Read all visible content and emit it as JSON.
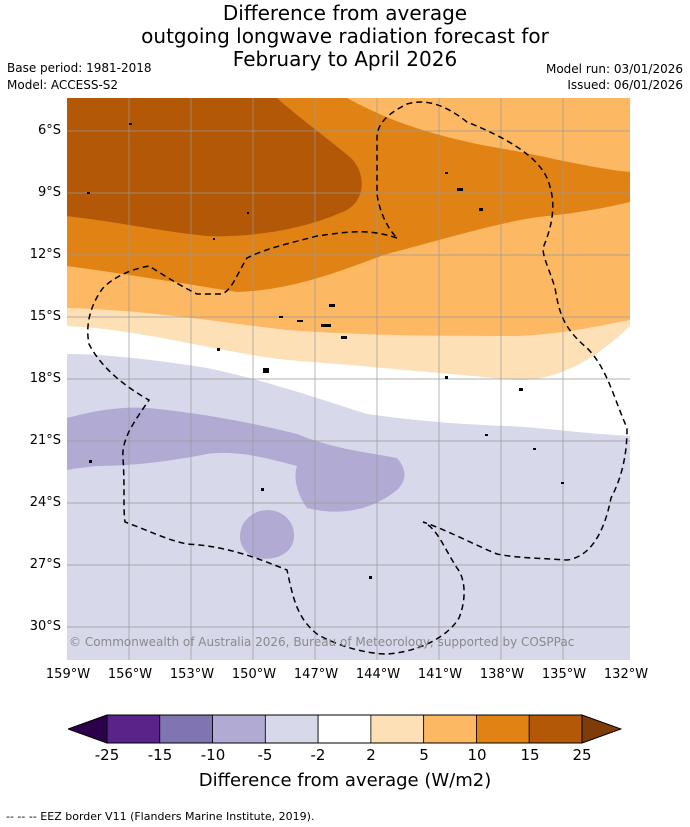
{
  "title": {
    "line1": "Difference from average",
    "line2": "outgoing longwave radiation forecast for",
    "line3": "February to April 2026"
  },
  "meta": {
    "base_period": "Base period: 1981-2018",
    "model": "Model: ACCESS-S2",
    "model_run": "Model run: 03/01/2026",
    "issued": "Issued: 06/01/2026"
  },
  "axes": {
    "lat_ticks": [
      "6°S",
      "9°S",
      "12°S",
      "15°S",
      "18°S",
      "21°S",
      "24°S",
      "27°S",
      "30°S"
    ],
    "lon_ticks": [
      "159°W",
      "156°W",
      "153°W",
      "150°W",
      "147°W",
      "144°W",
      "141°W",
      "138°W",
      "135°W",
      "132°W"
    ]
  },
  "copyright": "© Commonwealth of Australia 2026, Bureau of Meteorology, supported by COSPPac",
  "colorbar": {
    "ticks": [
      "-25",
      "-15",
      "-10",
      "-5",
      "-2",
      "2",
      "5",
      "10",
      "15",
      "25"
    ],
    "colors": [
      "#5a2389",
      "#8074b2",
      "#b1abd4",
      "#d7d8ea",
      "#ffffff",
      "#fde0b6",
      "#fdb863",
      "#e08214",
      "#b35806"
    ],
    "under_color": "#2d004b",
    "over_color": "#7f3b08",
    "label": "Difference from average (W/m2)"
  },
  "footer": "--  --  -- EEZ border V11 (Flanders Marine Institute, 2019)."
}
